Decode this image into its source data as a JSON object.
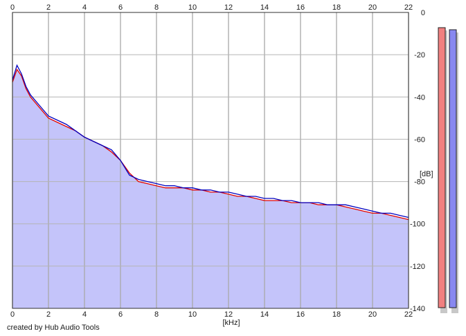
{
  "chart_data": {
    "type": "line",
    "title": "",
    "xlabel": "[kHz]",
    "ylabel": "[dB]",
    "xlim": [
      0,
      22
    ],
    "ylim": [
      -140,
      0
    ],
    "x_ticks": [
      0,
      2,
      4,
      6,
      8,
      10,
      12,
      14,
      16,
      18,
      20,
      22
    ],
    "y_ticks": [
      0,
      -20,
      -40,
      -60,
      -80,
      -100,
      -120,
      -140
    ],
    "grid": true,
    "series": [
      {
        "color": "#e00000",
        "x": [
          0,
          0.25,
          0.5,
          0.75,
          1,
          1.5,
          2,
          2.5,
          3,
          3.5,
          4,
          4.5,
          5,
          5.5,
          6,
          6.5,
          7,
          7.5,
          8,
          8.5,
          9,
          9.5,
          10,
          10.5,
          11,
          11.5,
          12,
          12.5,
          13,
          13.5,
          14,
          14.5,
          15,
          15.5,
          16,
          16.5,
          17,
          17.5,
          18,
          18.5,
          19,
          19.5,
          20,
          20.5,
          21,
          21.5,
          22
        ],
        "values": [
          -33,
          -27,
          -30,
          -36,
          -40,
          -45,
          -50,
          -52,
          -54,
          -56,
          -59,
          -61,
          -63,
          -66,
          -70,
          -76,
          -80,
          -81,
          -82,
          -83,
          -83,
          -83,
          -84,
          -84,
          -85,
          -85,
          -86,
          -87,
          -87,
          -88,
          -89,
          -89,
          -89,
          -90,
          -90,
          -90,
          -91,
          -91,
          -91,
          -92,
          -93,
          -94,
          -95,
          -95,
          -96,
          -97,
          -98
        ]
      },
      {
        "color": "#0000c0",
        "x": [
          0,
          0.25,
          0.5,
          0.75,
          1,
          1.5,
          2,
          2.5,
          3,
          3.5,
          4,
          4.5,
          5,
          5.5,
          6,
          6.5,
          7,
          7.5,
          8,
          8.5,
          9,
          9.5,
          10,
          10.5,
          11,
          11.5,
          12,
          12.5,
          13,
          13.5,
          14,
          14.5,
          15,
          15.5,
          16,
          16.5,
          17,
          17.5,
          18,
          18.5,
          19,
          19.5,
          20,
          20.5,
          21,
          21.5,
          22
        ],
        "values": [
          -32,
          -25,
          -29,
          -35,
          -39,
          -44,
          -49,
          -51,
          -53,
          -56,
          -59,
          -61,
          -63,
          -65,
          -70,
          -77,
          -79,
          -80,
          -81,
          -82,
          -82,
          -83,
          -83,
          -84,
          -84,
          -85,
          -85,
          -86,
          -87,
          -87,
          -88,
          -88,
          -89,
          -89,
          -90,
          -90,
          -90,
          -91,
          -91,
          -91,
          -92,
          -93,
          -94,
          -95,
          -95,
          -96,
          -97
        ]
      }
    ],
    "area_fill": "#c4c4fa",
    "meters": [
      {
        "color": "#f08080"
      },
      {
        "color": "#8888f0"
      }
    ]
  },
  "footer": {
    "credit": "created by Hub Audio Tools"
  }
}
